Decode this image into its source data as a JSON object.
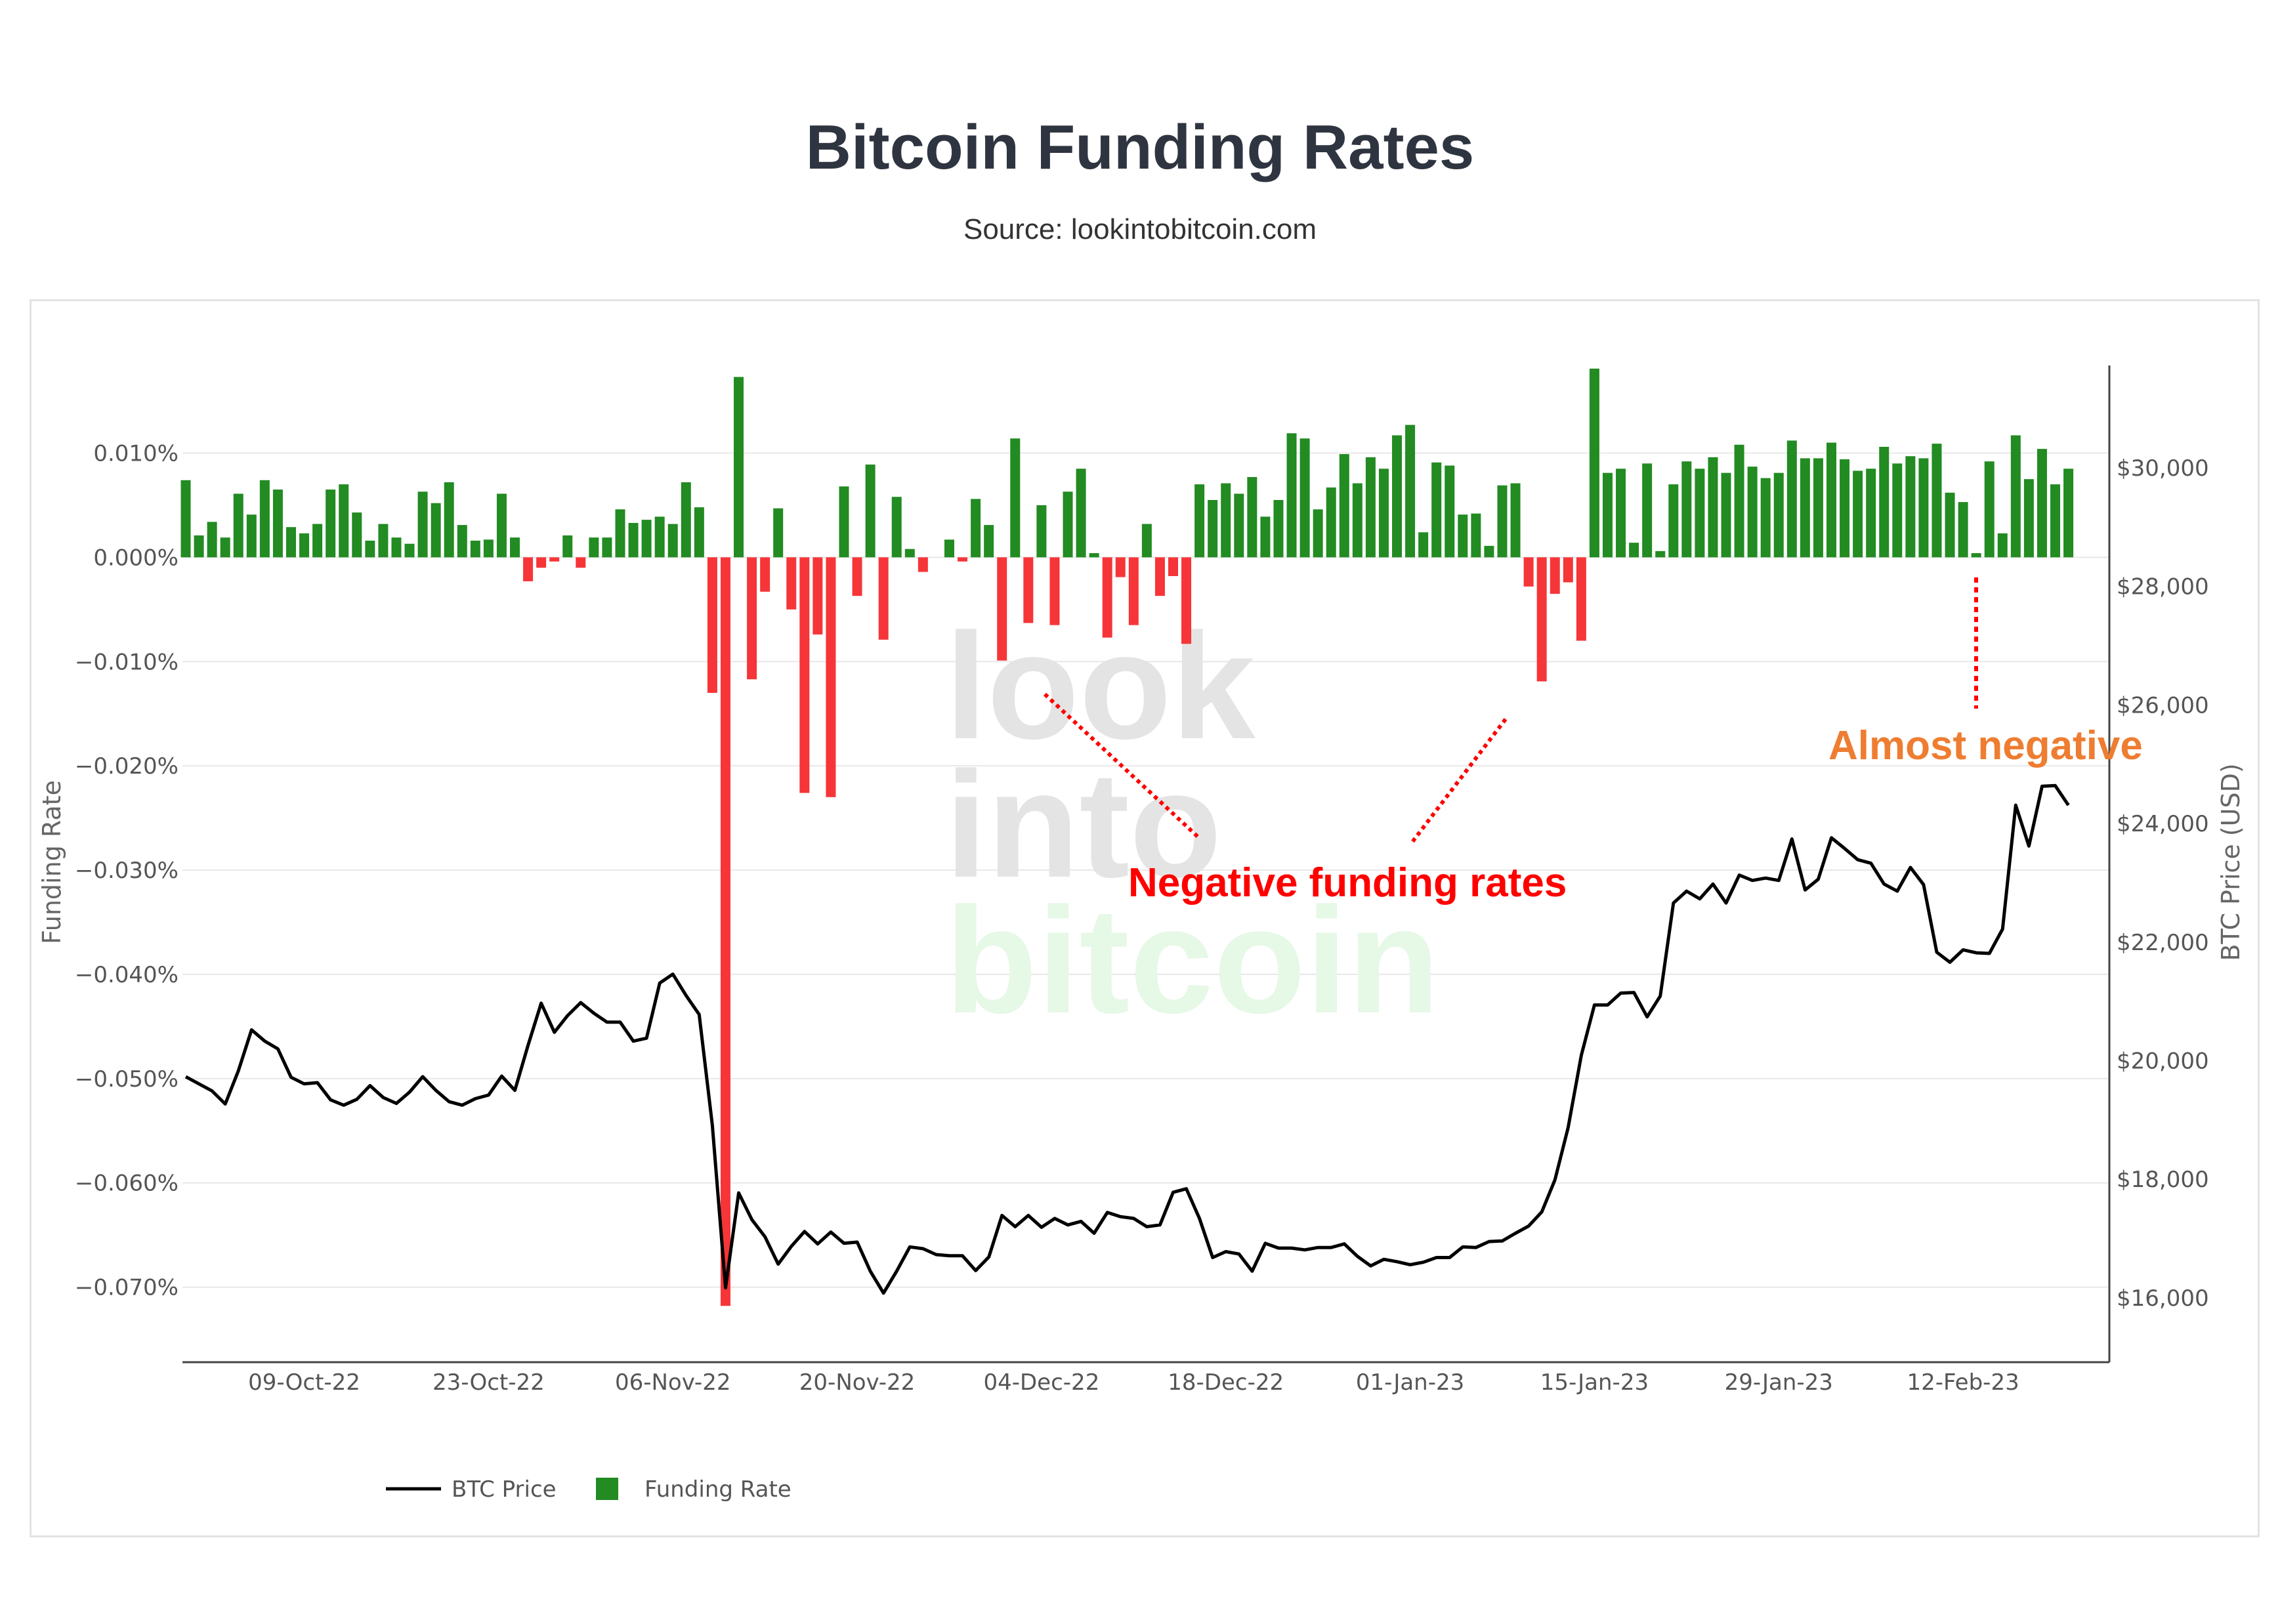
{
  "title": "Bitcoin Funding Rates",
  "subtitle": "Source: lookintobitcoin.com",
  "watermark": [
    "look",
    "into",
    "bitcoin"
  ],
  "annotations": {
    "negative": "Negative funding rates",
    "almost": "Almost negative"
  },
  "colors": {
    "positive": "#228b22",
    "negative": "#f63538",
    "line": "#000000",
    "negative_note": "#ff0000",
    "almost_note": "#ee7d31"
  },
  "chart_data": {
    "type": "bar+line",
    "title": "Bitcoin Funding Rates",
    "ylabel": "Funding Rate",
    "y2label": "BTC Price (USD)",
    "ylim": [
      -0.0772,
      0.0184
    ],
    "y2lim": [
      14915,
      31726
    ],
    "y_ticks": [
      {
        "v": 0.01,
        "label": "0.010%"
      },
      {
        "v": 0,
        "label": "0.000%"
      },
      {
        "v": -0.01,
        "label": "−0.010%"
      },
      {
        "v": -0.02,
        "label": "−0.020%"
      },
      {
        "v": -0.03,
        "label": "−0.030%"
      },
      {
        "v": -0.04,
        "label": "−0.040%"
      },
      {
        "v": -0.05,
        "label": "−0.050%"
      },
      {
        "v": -0.06,
        "label": "−0.060%"
      },
      {
        "v": -0.07,
        "label": "−0.070%"
      }
    ],
    "y2_ticks": [
      {
        "v": 30000,
        "label": "$30,000"
      },
      {
        "v": 28000,
        "label": "$28,000"
      },
      {
        "v": 26000,
        "label": "$26,000"
      },
      {
        "v": 24000,
        "label": "$24,000"
      },
      {
        "v": 22000,
        "label": "$22,000"
      },
      {
        "v": 20000,
        "label": "$20,000"
      },
      {
        "v": 18000,
        "label": "$18,000"
      },
      {
        "v": 16000,
        "label": "$16,000"
      }
    ],
    "x_ticks": [
      {
        "day": 9,
        "label": "09-Oct-22"
      },
      {
        "day": 23,
        "label": "23-Oct-22"
      },
      {
        "day": 37,
        "label": "06-Nov-22"
      },
      {
        "day": 51,
        "label": "20-Nov-22"
      },
      {
        "day": 65,
        "label": "04-Dec-22"
      },
      {
        "day": 79,
        "label": "18-Dec-22"
      },
      {
        "day": 93,
        "label": "01-Jan-23"
      },
      {
        "day": 107,
        "label": "15-Jan-23"
      },
      {
        "day": 121,
        "label": "29-Jan-23"
      },
      {
        "day": 135,
        "label": "12-Feb-23"
      }
    ],
    "legend": {
      "position": "bottom-left",
      "items": [
        "BTC Price",
        "Funding Rate"
      ]
    },
    "funding_rate": [
      0.0074,
      0.0021,
      0.0034,
      0.0019,
      0.0061,
      0.0041,
      0.0074,
      0.0065,
      0.0029,
      0.0023,
      0.0032,
      0.0065,
      0.007,
      0.0043,
      0.0016,
      0.0032,
      0.0019,
      0.0013,
      0.0063,
      0.0052,
      0.0072,
      0.0031,
      0.0016,
      0.0017,
      0.0061,
      0.0019,
      -0.0023,
      -0.001,
      -0.0004,
      0.0021,
      -0.001,
      0.0019,
      0.0019,
      0.0046,
      0.0033,
      0.0036,
      0.0039,
      0.0032,
      0.0072,
      0.0048,
      -0.013,
      -0.0718,
      0.0173,
      -0.0117,
      -0.0033,
      0.0047,
      -0.005,
      -0.0226,
      -0.0074,
      -0.023,
      0.0068,
      -0.0037,
      0.0089,
      -0.0079,
      0.0058,
      0.0008,
      -0.0014,
      0,
      0.0017,
      -0.0004,
      0.0056,
      0.0031,
      -0.0099,
      0.0114,
      -0.0063,
      0.005,
      -0.0065,
      0.0063,
      0.0085,
      0.0004,
      -0.0077,
      -0.0019,
      -0.0065,
      0.0032,
      -0.0037,
      -0.0018,
      -0.0083,
      0.007,
      0.0055,
      0.0071,
      0.0061,
      0.0077,
      0.0039,
      0.0055,
      0.0119,
      0.0114,
      0.0046,
      0.0067,
      0.0099,
      0.0071,
      0.0096,
      0.0085,
      0.0117,
      0.0127,
      0.0024,
      0.0091,
      0.0088,
      0.0041,
      0.0042,
      0.0011,
      0.0069,
      0.0071,
      -0.0028,
      -0.0119,
      -0.0035,
      -0.0024,
      -0.008,
      0.0181,
      0.0081,
      0.0085,
      0.0014,
      0.009,
      0.0006,
      0.007,
      0.0092,
      0.0085,
      0.0096,
      0.0081,
      0.0108,
      0.0087,
      0.0076,
      0.0081,
      0.0112,
      0.0095,
      0.0095,
      0.011,
      0.0094,
      0.0083,
      0.0085,
      0.0106,
      0.009,
      0.0097,
      0.0095,
      0.0109,
      0.0062,
      0.0053,
      0.0004,
      0.0092,
      0.0023,
      0.0117,
      0.0075,
      0.0104,
      0.007,
      0.0085
    ],
    "btc_price": [
      19730,
      19610,
      19490,
      19270,
      19830,
      20520,
      20330,
      20200,
      19720,
      19610,
      19630,
      19340,
      19250,
      19350,
      19580,
      19380,
      19280,
      19470,
      19730,
      19500,
      19310,
      19250,
      19360,
      19420,
      19740,
      19500,
      20260,
      20970,
      20480,
      20760,
      20980,
      20800,
      20650,
      20650,
      20330,
      20380,
      21310,
      21460,
      21100,
      20780,
      18910,
      16170,
      17770,
      17320,
      17030,
      16570,
      16870,
      17120,
      16910,
      17110,
      16920,
      16940,
      16450,
      16080,
      16450,
      16860,
      16830,
      16730,
      16710,
      16710,
      16460,
      16690,
      17390,
      17200,
      17390,
      17190,
      17340,
      17230,
      17290,
      17090,
      17440,
      17370,
      17340,
      17200,
      17230,
      17780,
      17840,
      17340,
      16680,
      16780,
      16740,
      16450,
      16920,
      16840,
      16840,
      16810,
      16850,
      16850,
      16910,
      16700,
      16540,
      16650,
      16610,
      16560,
      16600,
      16680,
      16680,
      16860,
      16850,
      16950,
      16960,
      17090,
      17210,
      17450,
      17990,
      18870,
      20090,
      20940,
      20940,
      21140,
      21150,
      20740,
      21090,
      22660,
      22860,
      22730,
      22980,
      22660,
      23130,
      23040,
      23080,
      23040,
      23740,
      22880,
      23060,
      23760,
      23580,
      23390,
      23330,
      22980,
      22860,
      23260,
      22970,
      21830,
      21660,
      21870,
      21820,
      21810,
      22220,
      24310,
      23620,
      24630,
      24640,
      24310
    ]
  }
}
